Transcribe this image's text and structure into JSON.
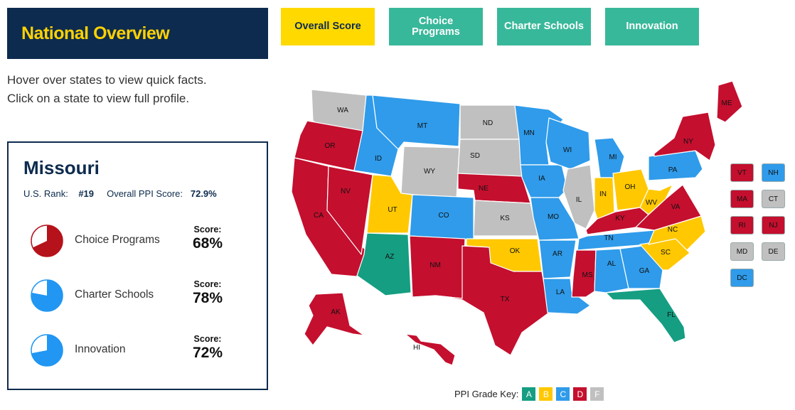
{
  "header": {
    "title": "National Overview"
  },
  "tabs": [
    {
      "label": "Overall Score",
      "active": true
    },
    {
      "label": "Choice Programs",
      "active": false
    },
    {
      "label": "Charter Schools",
      "active": false
    },
    {
      "label": "Innovation",
      "active": false
    }
  ],
  "intro": {
    "line1": "Hover over states to view quick facts.",
    "line2": "Click on a state to view full profile."
  },
  "profile": {
    "state": "Missouri",
    "rank_label": "U.S. Rank:",
    "rank_value": "#19",
    "ppi_label": "Overall PPI Score:",
    "ppi_value": "72.9%",
    "metrics": [
      {
        "label": "Choice Programs",
        "score_label": "Score:",
        "score": "68%",
        "fraction": 0.68,
        "color": "#b5121b"
      },
      {
        "label": "Charter Schools",
        "score_label": "Score:",
        "score": "78%",
        "fraction": 0.78,
        "color": "#2196f3"
      },
      {
        "label": "Innovation",
        "score_label": "Score:",
        "score": "72%",
        "fraction": 0.72,
        "color": "#2196f3"
      }
    ]
  },
  "grade_colors": {
    "A": "#159e82",
    "B": "#ffc800",
    "C": "#2f9bea",
    "D": "#c40f2e",
    "F": "#c0c0c0"
  },
  "states": [
    {
      "abbr": "WA",
      "grade": "F"
    },
    {
      "abbr": "OR",
      "grade": "D"
    },
    {
      "abbr": "CA",
      "grade": "D"
    },
    {
      "abbr": "NV",
      "grade": "D"
    },
    {
      "abbr": "ID",
      "grade": "C"
    },
    {
      "abbr": "MT",
      "grade": "C"
    },
    {
      "abbr": "WY",
      "grade": "F"
    },
    {
      "abbr": "UT",
      "grade": "B"
    },
    {
      "abbr": "AZ",
      "grade": "A"
    },
    {
      "abbr": "CO",
      "grade": "C"
    },
    {
      "abbr": "NM",
      "grade": "D"
    },
    {
      "abbr": "ND",
      "grade": "F"
    },
    {
      "abbr": "SD",
      "grade": "F"
    },
    {
      "abbr": "NE",
      "grade": "D"
    },
    {
      "abbr": "KS",
      "grade": "F"
    },
    {
      "abbr": "OK",
      "grade": "B"
    },
    {
      "abbr": "TX",
      "grade": "D"
    },
    {
      "abbr": "MN",
      "grade": "C"
    },
    {
      "abbr": "IA",
      "grade": "C"
    },
    {
      "abbr": "MO",
      "grade": "C"
    },
    {
      "abbr": "AR",
      "grade": "C"
    },
    {
      "abbr": "LA",
      "grade": "C"
    },
    {
      "abbr": "WI",
      "grade": "C"
    },
    {
      "abbr": "IL",
      "grade": "F"
    },
    {
      "abbr": "MI",
      "grade": "C"
    },
    {
      "abbr": "IN",
      "grade": "B"
    },
    {
      "abbr": "OH",
      "grade": "B"
    },
    {
      "abbr": "KY",
      "grade": "D"
    },
    {
      "abbr": "TN",
      "grade": "C"
    },
    {
      "abbr": "MS",
      "grade": "D"
    },
    {
      "abbr": "AL",
      "grade": "C"
    },
    {
      "abbr": "GA",
      "grade": "C"
    },
    {
      "abbr": "FL",
      "grade": "A"
    },
    {
      "abbr": "SC",
      "grade": "B"
    },
    {
      "abbr": "NC",
      "grade": "B"
    },
    {
      "abbr": "VA",
      "grade": "D"
    },
    {
      "abbr": "WV",
      "grade": "B"
    },
    {
      "abbr": "PA",
      "grade": "C"
    },
    {
      "abbr": "NY",
      "grade": "D"
    },
    {
      "abbr": "ME",
      "grade": "D"
    },
    {
      "abbr": "AK",
      "grade": "D"
    },
    {
      "abbr": "HI",
      "grade": "D"
    }
  ],
  "small_states": [
    {
      "abbr": "VT",
      "grade": "D"
    },
    {
      "abbr": "NH",
      "grade": "C"
    },
    {
      "abbr": "MA",
      "grade": "D"
    },
    {
      "abbr": "CT",
      "grade": "F"
    },
    {
      "abbr": "RI",
      "grade": "D"
    },
    {
      "abbr": "NJ",
      "grade": "D"
    },
    {
      "abbr": "MD",
      "grade": "F"
    },
    {
      "abbr": "DE",
      "grade": "F"
    },
    {
      "abbr": "DC",
      "grade": "C"
    }
  ],
  "grade_key": {
    "label": "PPI Grade Key:",
    "grades": [
      "A",
      "B",
      "C",
      "D",
      "F"
    ]
  }
}
